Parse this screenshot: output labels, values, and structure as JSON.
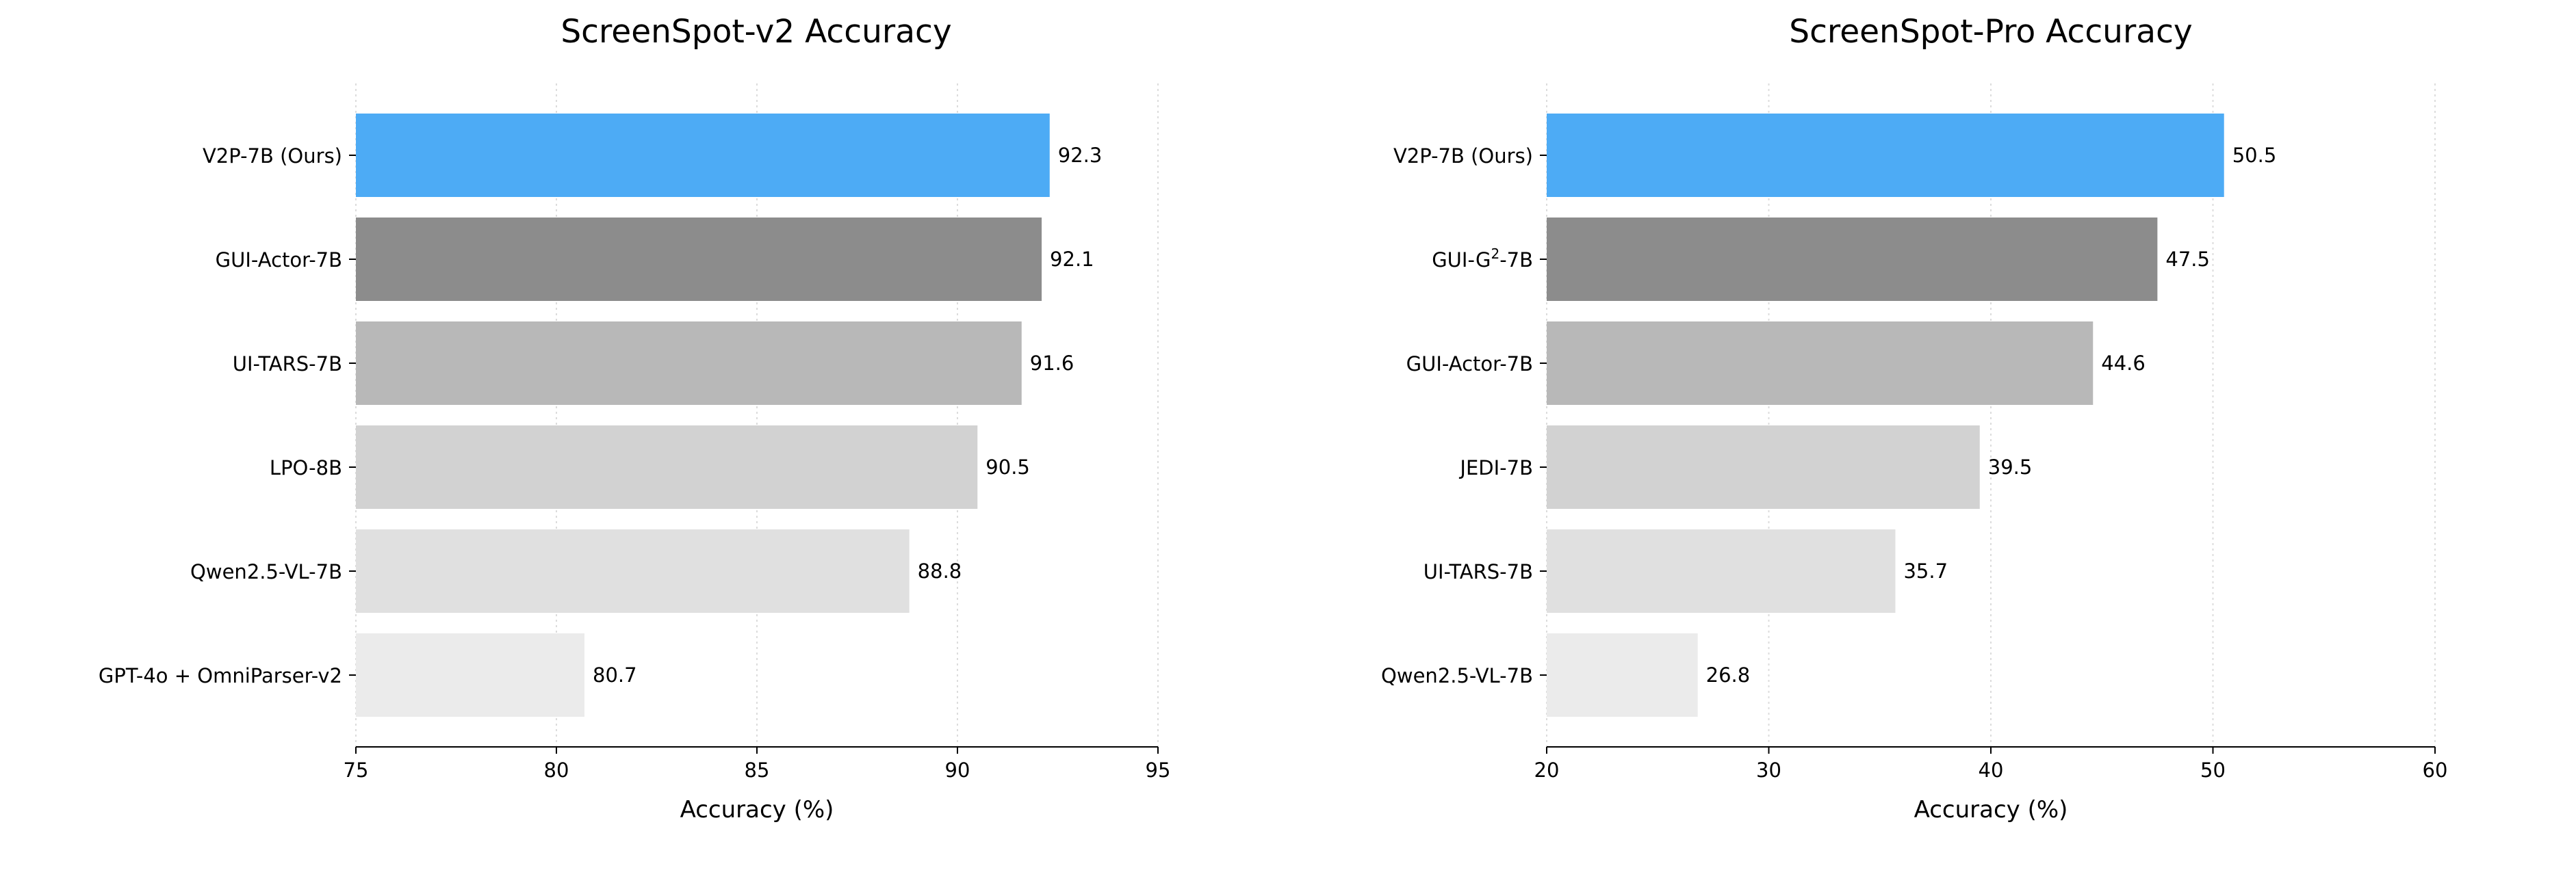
{
  "chart_data": [
    {
      "type": "bar",
      "orientation": "horizontal",
      "title": "ScreenSpot-v2 Accuracy",
      "xlabel": "Accuracy (%)",
      "ylabel": "",
      "xlim": [
        75,
        95
      ],
      "xticks": [
        "75",
        "80",
        "85",
        "90",
        "95"
      ],
      "grid": "x, dotted",
      "categories": [
        "V2P-7B (Ours)",
        "GUI-Actor-7B",
        "UI-TARS-7B",
        "LPO-8B",
        "Qwen2.5-VL-7B",
        "GPT-4o + OmniParser-v2"
      ],
      "values": [
        92.3,
        92.1,
        91.6,
        90.5,
        88.8,
        80.7
      ],
      "value_labels": [
        "92.3",
        "92.1",
        "91.6",
        "90.5",
        "88.8",
        "80.7"
      ],
      "colors": [
        "#4dabf5",
        "#8c8c8c",
        "#b8b8b8",
        "#d2d2d2",
        "#e0e0e0",
        "#ebebeb"
      ]
    },
    {
      "type": "bar",
      "orientation": "horizontal",
      "title": "ScreenSpot-Pro Accuracy",
      "xlabel": "Accuracy (%)",
      "ylabel": "",
      "xlim": [
        20,
        60
      ],
      "xticks": [
        "20",
        "30",
        "40",
        "50",
        "60"
      ],
      "grid": "x, dotted",
      "categories": [
        "V2P-7B (Ours)",
        "GUI-G²-7B",
        "GUI-Actor-7B",
        "JEDI-7B",
        "UI-TARS-7B",
        "Qwen2.5-VL-7B"
      ],
      "values": [
        50.5,
        47.5,
        44.6,
        39.5,
        35.7,
        26.8
      ],
      "value_labels": [
        "50.5",
        "47.5",
        "44.6",
        "39.5",
        "35.7",
        "26.8"
      ],
      "colors": [
        "#4dabf5",
        "#8c8c8c",
        "#b8b8b8",
        "#d2d2d2",
        "#e0e0e0",
        "#ebebeb"
      ]
    }
  ]
}
